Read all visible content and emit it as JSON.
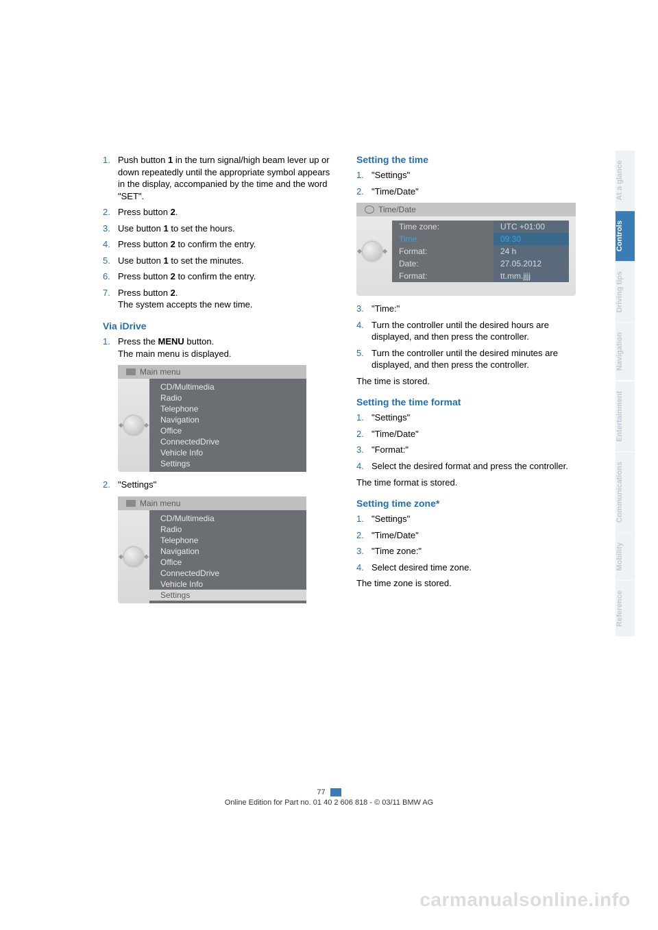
{
  "colors": {
    "accent": "#1f6fb2",
    "tab_active_bg": "#3a7db5",
    "tab_inactive_bg": "#eef2f5",
    "tab_inactive_text": "#bfcbd6",
    "idrive_body": "#6b6f74",
    "idrive_text": "#e8e8e8",
    "td_val_bg": "#5a6a7a",
    "td_sel": "#3ca0e0"
  },
  "left": {
    "steps1": [
      {
        "n": "1.",
        "html": "Push button <b>1</b> in the turn signal/high beam lever up or down repeatedly until the appropriate symbol appears in the display, accompanied by the time and the word \"SET\"."
      },
      {
        "n": "2.",
        "html": "Press button <b>2</b>."
      },
      {
        "n": "3.",
        "html": "Use button <b>1</b> to set the hours."
      },
      {
        "n": "4.",
        "html": "Press button <b>2</b> to confirm the entry."
      },
      {
        "n": "5.",
        "html": "Use button <b>1</b> to set the minutes."
      },
      {
        "n": "6.",
        "html": "Press button <b>2</b> to confirm the entry."
      },
      {
        "n": "7.",
        "html": "Press button <b>2</b>.<br>The system accepts the new time."
      }
    ],
    "via_idrive_heading": "Via iDrive",
    "steps2_pre": [
      {
        "n": "1.",
        "html": "Press the <b>MENU</b> button.<br>The main menu is displayed."
      }
    ],
    "idrive_header": "Main menu",
    "idrive_items1": [
      "CD/Multimedia",
      "Radio",
      "Telephone",
      "Navigation",
      "Office",
      "ConnectedDrive",
      "Vehicle Info",
      "Settings"
    ],
    "steps2_mid": [
      {
        "n": "2.",
        "html": "\"Settings\""
      }
    ],
    "idrive_items2": [
      "CD/Multimedia",
      "Radio",
      "Telephone",
      "Navigation",
      "Office",
      "ConnectedDrive",
      "Vehicle Info",
      "Settings"
    ],
    "idrive_selected2": "Settings"
  },
  "right": {
    "setting_time_heading": "Setting the time",
    "steps_time_a": [
      {
        "n": "1.",
        "html": "\"Settings\""
      },
      {
        "n": "2.",
        "html": "\"Time/Date\""
      }
    ],
    "timedate_header": "Time/Date",
    "timedate_rows": [
      {
        "label": "Time zone:",
        "value": "UTC +01:00",
        "sel": false
      },
      {
        "label": "Time:",
        "value": "09:30",
        "sel": true
      },
      {
        "label": "Format:",
        "value": "24 h",
        "sel": false
      },
      {
        "label": "Date:",
        "value": "27.05.2012",
        "sel": false
      },
      {
        "label": "Format:",
        "value": "tt.mm.jjjj",
        "sel": false
      }
    ],
    "steps_time_b": [
      {
        "n": "3.",
        "html": "\"Time:\""
      },
      {
        "n": "4.",
        "html": "Turn the controller until the desired hours are displayed, and then press the controller."
      },
      {
        "n": "5.",
        "html": "Turn the controller until the desired minutes are displayed, and then press the controller."
      }
    ],
    "time_stored": "The time is stored.",
    "setting_format_heading": "Setting the time format",
    "steps_format": [
      {
        "n": "1.",
        "html": "\"Settings\""
      },
      {
        "n": "2.",
        "html": "\"Time/Date\""
      },
      {
        "n": "3.",
        "html": "\"Format:\""
      },
      {
        "n": "4.",
        "html": "Select the desired format and press the controller."
      }
    ],
    "format_stored": "The time format is stored.",
    "setting_zone_heading": "Setting time zone*",
    "steps_zone": [
      {
        "n": "1.",
        "html": "\"Settings\""
      },
      {
        "n": "2.",
        "html": "\"Time/Date\""
      },
      {
        "n": "3.",
        "html": "\"Time zone:\""
      },
      {
        "n": "4.",
        "html": "Select desired time zone."
      }
    ],
    "zone_stored": "The time zone is stored."
  },
  "tabs": [
    {
      "label": "At a glance",
      "active": false
    },
    {
      "label": "Controls",
      "active": true
    },
    {
      "label": "Driving tips",
      "active": false
    },
    {
      "label": "Navigation",
      "active": false
    },
    {
      "label": "Entertainment",
      "active": false
    },
    {
      "label": "Communications",
      "active": false
    },
    {
      "label": "Mobility",
      "active": false
    },
    {
      "label": "Reference",
      "active": false
    }
  ],
  "footer": {
    "page": "77",
    "line": "Online Edition for Part no. 01 40 2 606 818 - © 03/11 BMW AG"
  },
  "watermark": "carmanualsonline.info"
}
